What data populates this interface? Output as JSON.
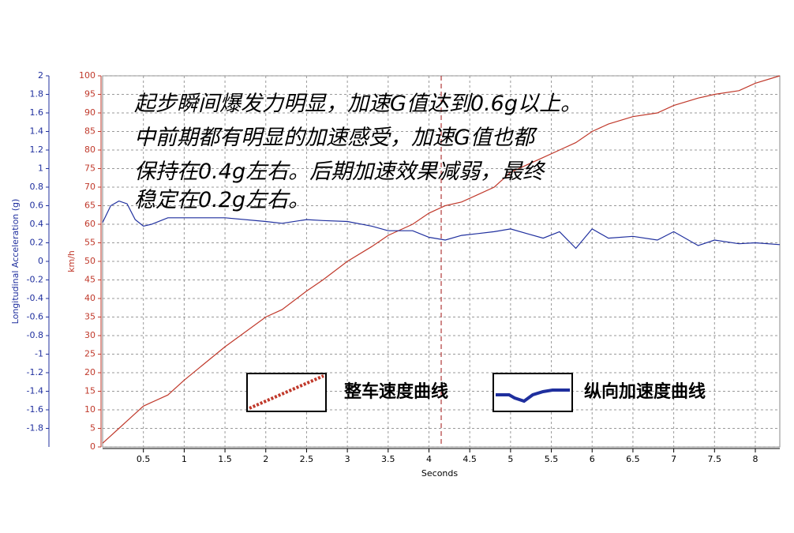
{
  "chart_data": {
    "type": "line",
    "annotation": [
      "起步瞬间爆发力明显，加速G值达到0.6g以上。",
      "中前期都有明显的加速感受，加速G值也都",
      "保持在0.4g左右。后期加速效果减弱，最终",
      "稳定在0.2g左右。"
    ],
    "xlabel": "Seconds",
    "ylabel": "km/h",
    "y2label": "Longitudinal Acceleration (g)",
    "x": [
      0,
      0.1,
      0.2,
      0.3,
      0.4,
      0.5,
      0.6,
      0.8,
      1,
      1.5,
      2,
      2.2,
      2.5,
      2.7,
      3,
      3.3,
      3.5,
      3.8,
      4,
      4.2,
      4.4,
      4.6,
      4.8,
      5,
      5.2,
      5.4,
      5.6,
      5.8,
      6,
      6.2,
      6.5,
      6.8,
      7,
      7.3,
      7.5,
      7.8,
      8,
      8.3
    ],
    "series": [
      {
        "name": "整车速度曲线",
        "color": "#c0392b",
        "values": [
          1,
          3,
          5,
          7,
          9,
          11,
          12,
          14,
          18,
          27,
          35,
          37,
          42,
          45,
          50,
          54,
          57,
          60,
          63,
          65,
          66,
          68,
          70,
          74,
          76,
          78,
          80,
          82,
          85,
          87,
          89,
          90,
          92,
          94,
          95,
          96,
          98,
          100
        ]
      },
      {
        "name": "纵向加速度曲线",
        "color": "#1f2f9e",
        "axis": "y2",
        "values": [
          0.42,
          0.6,
          0.65,
          0.62,
          0.45,
          0.38,
          0.4,
          0.47,
          0.47,
          0.47,
          0.43,
          0.41,
          0.45,
          0.44,
          0.43,
          0.38,
          0.33,
          0.33,
          0.26,
          0.23,
          0.28,
          0.3,
          0.32,
          0.35,
          0.3,
          0.25,
          0.32,
          0.14,
          0.35,
          0.25,
          0.27,
          0.23,
          0.32,
          0.17,
          0.23,
          0.19,
          0.2,
          0.18
        ]
      }
    ],
    "xlim": [
      0,
      8.3
    ],
    "xticks": [
      0.5,
      1,
      1.5,
      2,
      2.5,
      3,
      3.5,
      4,
      4.5,
      5,
      5.5,
      6,
      6.5,
      7,
      7.5,
      8
    ],
    "ylim": [
      0,
      100
    ],
    "yticks": [
      0,
      5,
      10,
      15,
      20,
      25,
      30,
      35,
      40,
      45,
      50,
      55,
      60,
      65,
      70,
      75,
      80,
      85,
      90,
      95,
      100
    ],
    "y2lim": [
      -2,
      2
    ],
    "y2ticks": [
      -1.8,
      -1.6,
      -1.4,
      -1.2,
      -1,
      -0.8,
      -0.6,
      -0.4,
      -0.2,
      0,
      0.2,
      0.4,
      0.6,
      0.8,
      1,
      1.2,
      1.4,
      1.6,
      1.8,
      2
    ],
    "cursor_x": 4.15,
    "grid": true
  }
}
